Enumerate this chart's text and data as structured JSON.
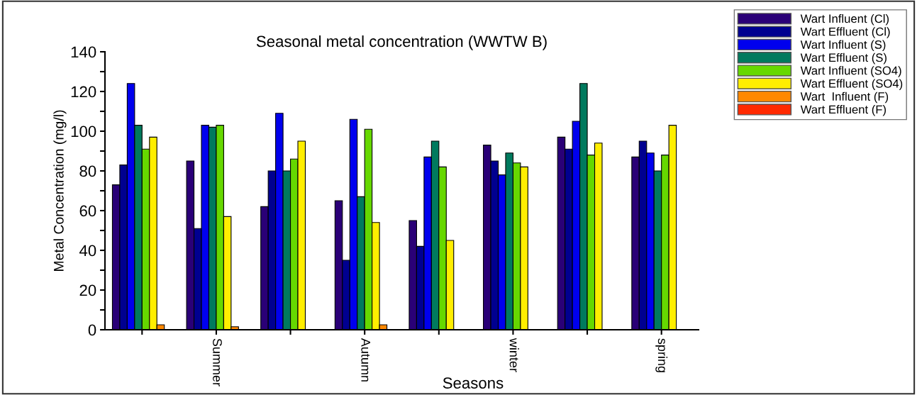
{
  "chart_data": {
    "type": "bar",
    "title": "Seasonal metal concentration (WWTW B)",
    "xlabel": "Seasons",
    "ylabel": "Metal Concentration (mg/l)",
    "categories": [
      null,
      "Summer",
      null,
      "Autumn",
      null,
      "winter",
      null,
      "spring"
    ],
    "series": [
      {
        "name": "Wart Influent (Cl)",
        "color": "#2a0077",
        "values": [
          73,
          85,
          62,
          65,
          55,
          93,
          97,
          87
        ]
      },
      {
        "name": "Wart Effluent (Cl)",
        "color": "#000090",
        "values": [
          83,
          51,
          80,
          35,
          42,
          85,
          91,
          95
        ]
      },
      {
        "name": "Wart Influent (S)",
        "color": "#0000ee",
        "values": [
          124,
          103,
          109,
          106,
          87,
          78,
          105,
          89
        ]
      },
      {
        "name": "Wart Effluent (S)",
        "color": "#007a5e",
        "values": [
          103,
          102,
          80,
          67,
          95,
          89,
          124,
          80
        ]
      },
      {
        "name": "Wart Influent (SO4)",
        "color": "#66d800",
        "values": [
          91,
          103,
          86,
          101,
          82,
          84,
          88,
          88
        ]
      },
      {
        "name": "Wart Effluent (SO4)",
        "color": "#ffee00",
        "values": [
          97,
          57,
          95,
          54,
          45,
          82,
          94,
          103
        ]
      },
      {
        "name": "Wart  Influent (F)",
        "color": "#ff8800",
        "values": [
          2.5,
          1.5,
          null,
          2.5,
          null,
          null,
          null,
          null
        ]
      },
      {
        "name": "Wart Effluent (F)",
        "color": "#ff2a00",
        "values": [
          null,
          null,
          null,
          null,
          null,
          null,
          null,
          null
        ]
      }
    ],
    "ylim": [
      0,
      140
    ],
    "yticks": [
      0,
      {
        "value": 10,
        "label": null
      },
      20,
      {
        "value": 30,
        "label": null
      },
      40,
      {
        "value": 50,
        "label": null
      },
      60,
      {
        "value": 70,
        "label": null
      },
      80,
      {
        "value": 90,
        "label": null
      },
      100,
      {
        "value": 110,
        "label": null
      },
      120,
      {
        "value": 130,
        "label": null
      },
      140
    ],
    "grid": false,
    "legend": "top right"
  }
}
